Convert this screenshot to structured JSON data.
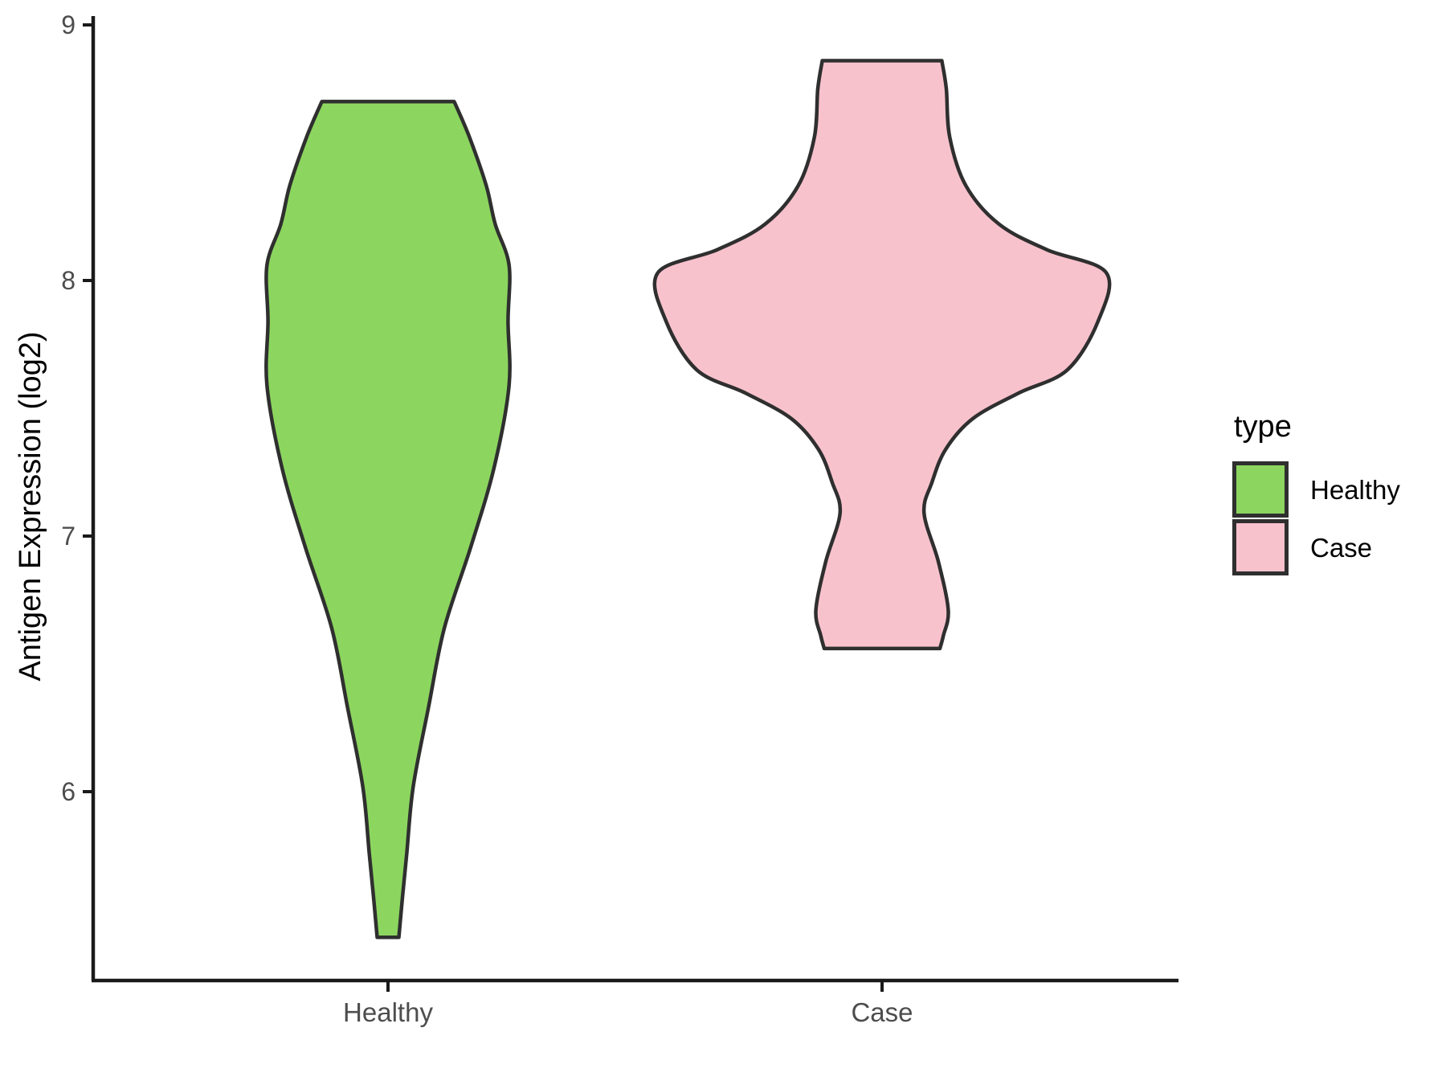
{
  "figure_background": "#FFFFFF",
  "chart_data": {
    "type": "violin",
    "title": "",
    "xlabel": "",
    "ylabel": "Antigen Expression (log2)",
    "categories": [
      "Healthy",
      "Case"
    ],
    "y_ticks": [
      6,
      7,
      8,
      9
    ],
    "ylim": [
      5.26,
      9.03
    ],
    "grid": false,
    "axis_color": "#1A1A1A",
    "tick_label_color": "#4D4D4D",
    "violin_outline_color": "#2F2F2F",
    "legend": {
      "title": "type",
      "position": "right",
      "entries": [
        {
          "label": "Healthy",
          "color": "#8CD65F"
        },
        {
          "label": "Case",
          "color": "#F8C2CD"
        }
      ]
    },
    "series": [
      {
        "name": "Healthy",
        "category_index": 1,
        "fill": "#8CD65F",
        "value_range": [
          5.43,
          8.7
        ],
        "profile": [
          [
            8.7,
            0.134
          ],
          [
            8.56,
            0.165
          ],
          [
            8.37,
            0.199
          ],
          [
            8.22,
            0.217
          ],
          [
            8.06,
            0.245
          ],
          [
            7.84,
            0.243
          ],
          [
            7.59,
            0.245
          ],
          [
            7.27,
            0.215
          ],
          [
            6.96,
            0.168
          ],
          [
            6.64,
            0.114
          ],
          [
            6.33,
            0.082
          ],
          [
            6.02,
            0.051
          ],
          [
            5.76,
            0.038
          ],
          [
            5.58,
            0.029
          ],
          [
            5.43,
            0.022
          ]
        ]
      },
      {
        "name": "Case",
        "category_index": 2,
        "fill": "#F8C2CD",
        "value_range": [
          6.56,
          8.86
        ],
        "profile": [
          [
            8.86,
            0.121
          ],
          [
            8.75,
            0.13
          ],
          [
            8.56,
            0.137
          ],
          [
            8.37,
            0.17
          ],
          [
            8.22,
            0.237
          ],
          [
            8.12,
            0.334
          ],
          [
            8.03,
            0.454
          ],
          [
            7.84,
            0.437
          ],
          [
            7.65,
            0.375
          ],
          [
            7.56,
            0.277
          ],
          [
            7.46,
            0.184
          ],
          [
            7.34,
            0.129
          ],
          [
            7.21,
            0.101
          ],
          [
            7.09,
            0.085
          ],
          [
            6.9,
            0.114
          ],
          [
            6.71,
            0.134
          ],
          [
            6.61,
            0.124
          ],
          [
            6.56,
            0.117
          ]
        ]
      }
    ],
    "profile_note": "profile = [expression_value, half_width as fraction of category spacing]"
  }
}
